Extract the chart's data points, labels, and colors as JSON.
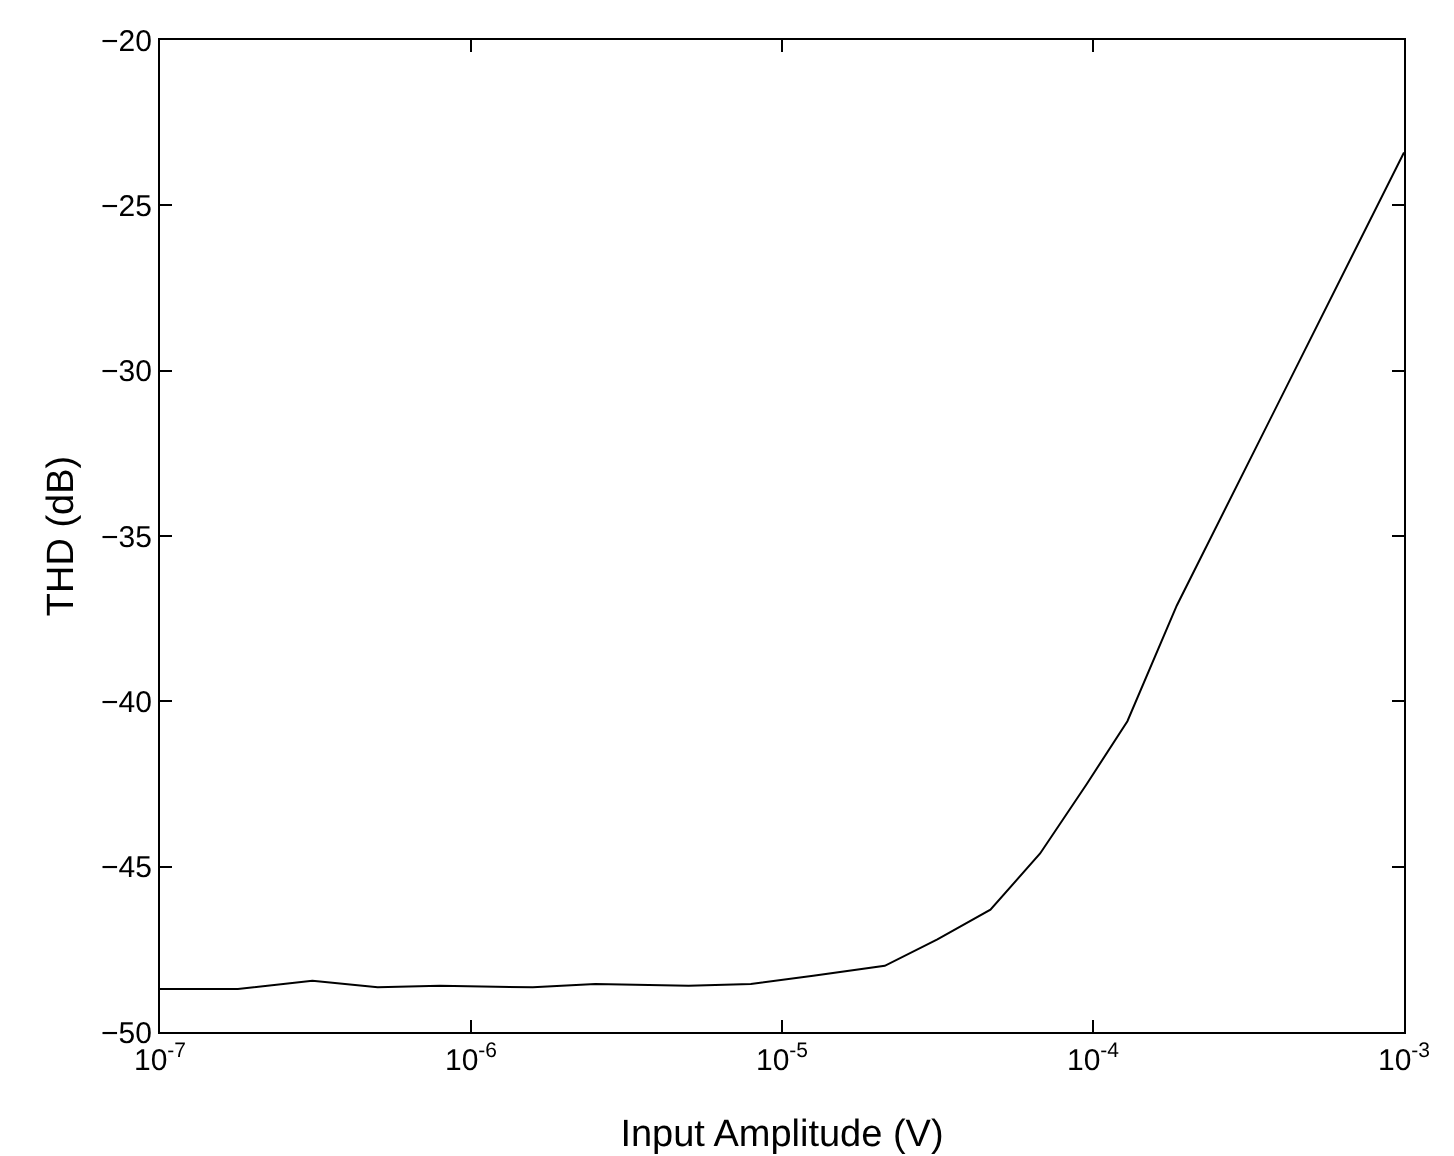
{
  "chart_data": {
    "type": "line",
    "xlabel": "Input Amplitude (V)",
    "ylabel": "THD (dB)",
    "log": "x",
    "grid": false,
    "marker": "none",
    "line_style": "solid",
    "x": [
      1e-07,
      1.78e-07,
      3.09e-07,
      5.01e-07,
      7.94e-07,
      1.58e-06,
      2.51e-06,
      5.01e-06,
      7.94e-06,
      1.26e-05,
      2.14e-05,
      3.16e-05,
      4.68e-05,
      6.76e-05,
      9.55e-05,
      0.000129,
      0.000186,
      0.001
    ],
    "series": [
      {
        "color": "#000000",
        "values": [
          -48.7,
          -48.7,
          -48.45,
          -48.65,
          -48.6,
          -48.65,
          -48.55,
          -48.6,
          -48.55,
          -48.3,
          -48.0,
          -47.2,
          -46.3,
          -44.6,
          -42.5,
          -40.6,
          -37.1,
          -23.4
        ]
      }
    ],
    "xlim": [
      1e-07,
      0.001
    ],
    "ylim": [
      -50,
      -20
    ],
    "xticks": [
      {
        "value": 1e-07,
        "label": "10$^{-7}$"
      },
      {
        "value": 1e-06,
        "label": "10$^{-6}$"
      },
      {
        "value": 1e-05,
        "label": "10$^{-5}$"
      },
      {
        "value": 0.0001,
        "label": "10$^{-4}$"
      },
      {
        "value": 0.001,
        "label": "10$^{-3}$"
      }
    ],
    "yticks": [
      -50,
      -45,
      -40,
      -35,
      -30,
      -25,
      -20
    ]
  }
}
